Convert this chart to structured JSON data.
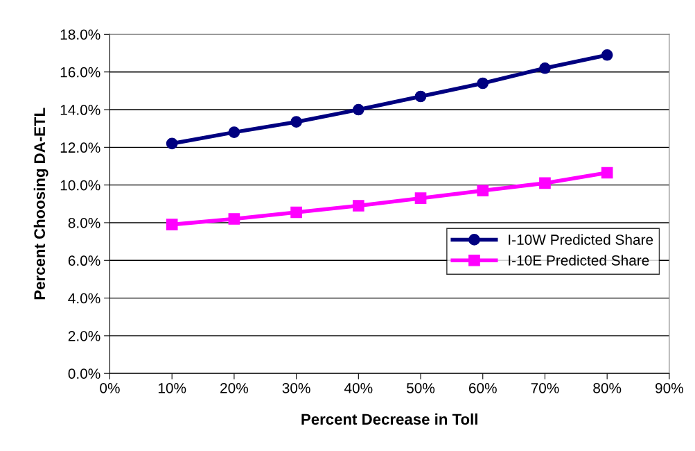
{
  "chart_data": {
    "type": "line",
    "xlabel": "Percent Decrease in Toll",
    "ylabel": "Percent Choosing DA-ETL",
    "x": [
      10,
      20,
      30,
      40,
      50,
      60,
      70,
      80
    ],
    "series": [
      {
        "name": "I-10W Predicted Share",
        "color": "#000080",
        "marker": "circle",
        "values": [
          12.2,
          12.8,
          13.35,
          14.0,
          14.7,
          15.4,
          16.2,
          16.9
        ]
      },
      {
        "name": "I-10E Predicted Share",
        "color": "#ff00ff",
        "marker": "square",
        "values": [
          7.9,
          8.2,
          8.55,
          8.9,
          9.3,
          9.7,
          10.1,
          10.65
        ]
      }
    ],
    "xlim": [
      0,
      90
    ],
    "xticks": [
      {
        "value": 0,
        "label": "0%"
      },
      {
        "value": 10,
        "label": "10%"
      },
      {
        "value": 20,
        "label": "20%"
      },
      {
        "value": 30,
        "label": "30%"
      },
      {
        "value": 40,
        "label": "40%"
      },
      {
        "value": 50,
        "label": "50%"
      },
      {
        "value": 60,
        "label": "60%"
      },
      {
        "value": 70,
        "label": "70%"
      },
      {
        "value": 80,
        "label": "80%"
      },
      {
        "value": 90,
        "label": "90%"
      }
    ],
    "ylim": [
      0,
      18
    ],
    "yticks": [
      {
        "value": 0,
        "label": "0.0%"
      },
      {
        "value": 2,
        "label": "2.0%"
      },
      {
        "value": 4,
        "label": "4.0%"
      },
      {
        "value": 6,
        "label": "6.0%"
      },
      {
        "value": 8,
        "label": "8.0%"
      },
      {
        "value": 10,
        "label": "10.0%"
      },
      {
        "value": 12,
        "label": "12.0%"
      },
      {
        "value": 14,
        "label": "14.0%"
      },
      {
        "value": 16,
        "label": "16.0%"
      },
      {
        "value": 18,
        "label": "18.0%"
      }
    ],
    "grid": "y",
    "legend": "right",
    "line_style": "solid"
  }
}
